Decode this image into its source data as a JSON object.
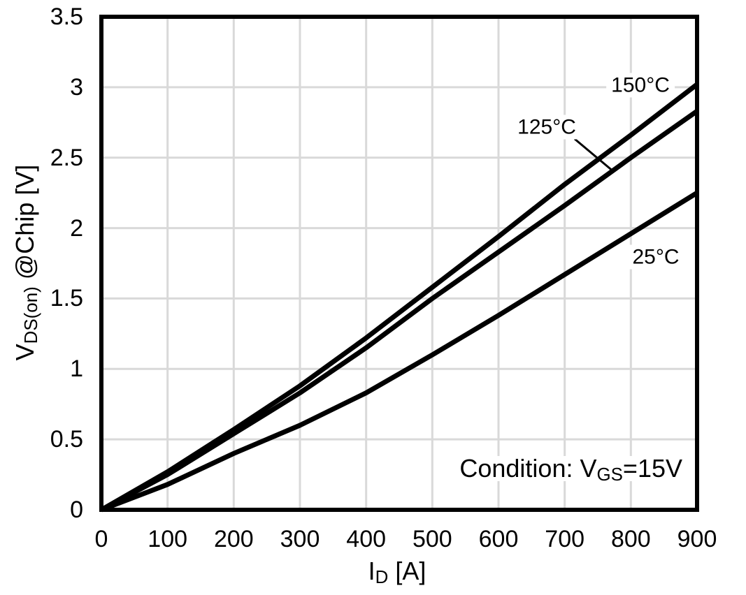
{
  "chart_data": {
    "type": "line",
    "title": "",
    "xlabel": {
      "base": "I",
      "sub": "D",
      "rest": " [A]"
    },
    "ylabel": {
      "base": "V",
      "sub": "DS(on)",
      "rest": " @Chip [V]"
    },
    "condition": {
      "base": "Condition: V",
      "sub": "GS",
      "rest": "=15V"
    },
    "xlim": [
      0,
      900
    ],
    "ylim": [
      0,
      3.5
    ],
    "x_tick_labels": [
      "0",
      "100",
      "200",
      "300",
      "400",
      "500",
      "600",
      "700",
      "800",
      "900"
    ],
    "y_tick_labels": [
      "0",
      "0.5",
      "1",
      "1.5",
      "2",
      "2.5",
      "3",
      "3.5"
    ],
    "grid": true,
    "legend_position": "inline-curve-labels",
    "colors": {
      "curve": "#000000",
      "grid": "#d9d9d9",
      "border": "#000000",
      "text": "#000000"
    },
    "x": [
      0,
      100,
      200,
      300,
      400,
      500,
      600,
      700,
      800,
      900
    ],
    "series": [
      {
        "name": "150°C",
        "values": [
          0,
          0.27,
          0.57,
          0.88,
          1.22,
          1.58,
          1.94,
          2.31,
          2.66,
          3.02
        ]
      },
      {
        "name": "125°C",
        "values": [
          0,
          0.25,
          0.54,
          0.83,
          1.15,
          1.5,
          1.83,
          2.16,
          2.5,
          2.83
        ]
      },
      {
        "name": "25°C",
        "values": [
          0,
          0.18,
          0.4,
          0.6,
          0.83,
          1.1,
          1.38,
          1.67,
          1.96,
          2.25
        ]
      }
    ]
  }
}
